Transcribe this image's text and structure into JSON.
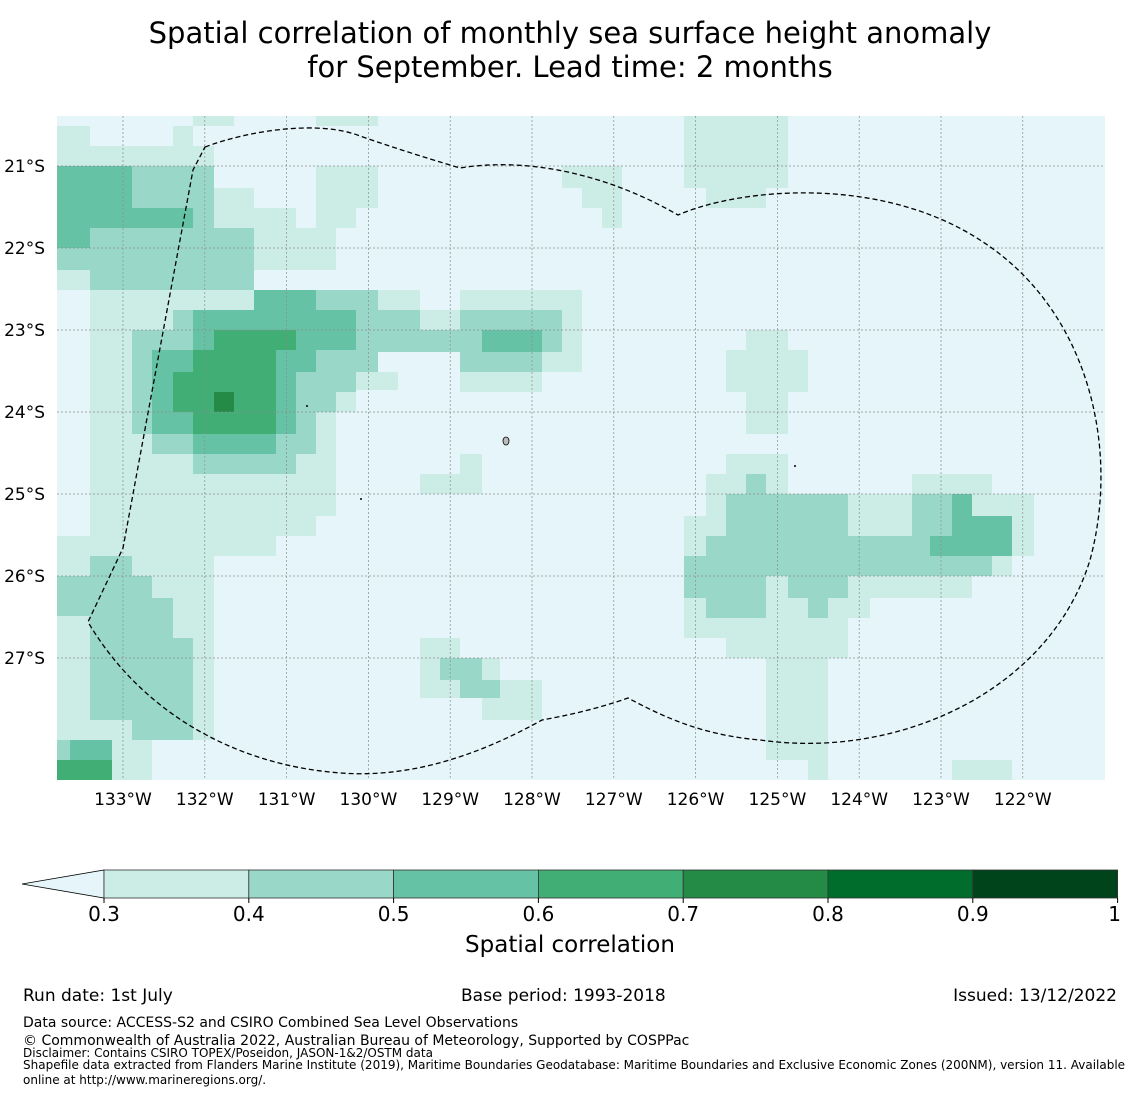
{
  "title_line1": "Spatial correlation of monthly sea surface height anomaly",
  "title_line2": "for September. Lead time: 2 months",
  "map": {
    "lon_labels": [
      "133°W",
      "132°W",
      "131°W",
      "130°W",
      "129°W",
      "128°W",
      "127°W",
      "126°W",
      "125°W",
      "124°W",
      "123°W",
      "122°W"
    ],
    "lat_labels": [
      "21°S",
      "22°S",
      "23°S",
      "24°S",
      "25°S",
      "26°S",
      "27°S"
    ],
    "background_color": "#e5f5f9"
  },
  "chart_data": {
    "type": "heatmap",
    "title": "Spatial correlation of monthly sea surface height anomaly for September. Lead time: 2 months",
    "colorbar": {
      "label": "Spatial correlation",
      "ticks": [
        "0.3",
        "0.4",
        "0.5",
        "0.6",
        "0.7",
        "0.8",
        "0.9",
        "1"
      ],
      "extend": "min",
      "colors": [
        "#ccece6",
        "#99d8c9",
        "#66c2a4",
        "#41ae76",
        "#238b45",
        "#006d2c",
        "#00441b"
      ]
    },
    "notes": "Correlation field on 0.25° grid; values shown by colour class. Regions below 0.3 shown in lightest background colour."
  },
  "footer": {
    "run_date": "Run date: 1st July",
    "base_period": "Base period: 1993-2018",
    "issued": "Issued: 13/12/2022",
    "data_source": "Data source: ACCESS-S2 and CSIRO Combined Sea Level Observations",
    "copyright": "© Commonwealth of Australia 2022, Australian Bureau of Meteorology, Supported by COSPPac",
    "disclaimer": "Disclaimer: Contains CSIRO TOPEX/Poseidon, JASON-1&2/OSTM data",
    "shapefile_line1": "Shapefile data extracted from Flanders Marine Institute (2019), Maritime Boundaries Geodatabase: Maritime Boundaries and Exclusive Economic Zones (200NM), version 11. Available",
    "shapefile_line2": "online at http://www.marineregions.org/."
  }
}
